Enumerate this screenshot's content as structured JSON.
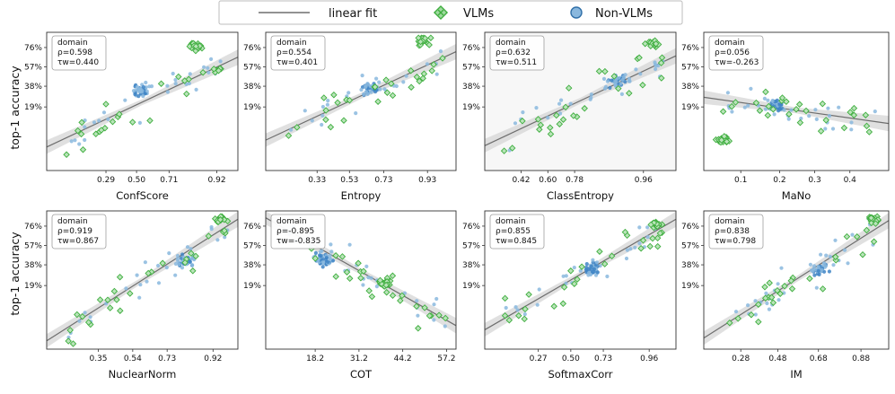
{
  "legend": {
    "linear_fit": "linear fit",
    "vlms": "VLMs",
    "non_vlms": "Non-VLMs"
  },
  "ylabel_row1": "top-1 accuracy",
  "ylabel_row2": "top-1 accuracy",
  "colors": {
    "vlm": "#3fae3f",
    "nonvlm": "#8ab8de",
    "line": "#6e6e6e",
    "band": "#d6d6d6"
  },
  "chart_data": [
    {
      "type": "scatter",
      "xlabel": "ConfScore",
      "xticks": [
        "0.29",
        "0.50",
        "0.71",
        "0.92"
      ],
      "yticks": [
        "76%",
        "57%",
        "38%",
        "19%"
      ],
      "domain_label": "domain",
      "rho": "ρ=0.598",
      "tau": "τw=0.440"
    },
    {
      "type": "scatter",
      "xlabel": "Entropy",
      "xticks": [
        "0.33",
        "0.53",
        "0.73",
        "0.93"
      ],
      "yticks": [
        "76%",
        "57%",
        "38%",
        "19%"
      ],
      "domain_label": "domain",
      "rho": "ρ=0.554",
      "tau": "τw=0.401"
    },
    {
      "type": "scatter",
      "xlabel": "ClassEntropy",
      "xticks": [
        "0.42",
        "0.60",
        "0.78",
        "0.96"
      ],
      "yticks": [
        "76%",
        "57%",
        "38%",
        "19%"
      ],
      "domain_label": "domain",
      "rho": "ρ=0.632",
      "tau": "τw=0.511"
    },
    {
      "type": "scatter",
      "xlabel": "MaNo",
      "xticks": [
        "0.1",
        "0.2",
        "0.3",
        "0.4"
      ],
      "yticks": [
        "76%",
        "57%",
        "38%",
        "19%"
      ],
      "domain_label": "domain",
      "rho": "ρ=0.056",
      "tau": "τw=-0.263"
    },
    {
      "type": "scatter",
      "xlabel": "NuclearNorm",
      "xticks": [
        "0.35",
        "0.54",
        "0.73",
        "0.92"
      ],
      "yticks": [
        "76%",
        "57%",
        "38%",
        "19%"
      ],
      "domain_label": "domain",
      "rho": "ρ=0.919",
      "tau": "τw=0.867"
    },
    {
      "type": "scatter",
      "xlabel": "COT",
      "xticks": [
        "18.2",
        "31.2",
        "44.2",
        "57.2"
      ],
      "yticks": [
        "76%",
        "57%",
        "38%",
        "19%"
      ],
      "domain_label": "domain",
      "rho": "ρ=-0.895",
      "tau": "τw=-0.835"
    },
    {
      "type": "scatter",
      "xlabel": "SoftmaxCorr",
      "xticks": [
        "0.27",
        "0.50",
        "0.73",
        "0.96"
      ],
      "yticks": [
        "76%",
        "57%",
        "38%",
        "19%"
      ],
      "domain_label": "domain",
      "rho": "ρ=0.855",
      "tau": "τw=0.845"
    },
    {
      "type": "scatter",
      "xlabel": "IM",
      "xticks": [
        "0.28",
        "0.48",
        "0.68",
        "0.88"
      ],
      "yticks": [
        "76%",
        "57%",
        "38%",
        "19%"
      ],
      "domain_label": "domain",
      "rho": "ρ=0.838",
      "tau": "τw=0.798"
    }
  ]
}
